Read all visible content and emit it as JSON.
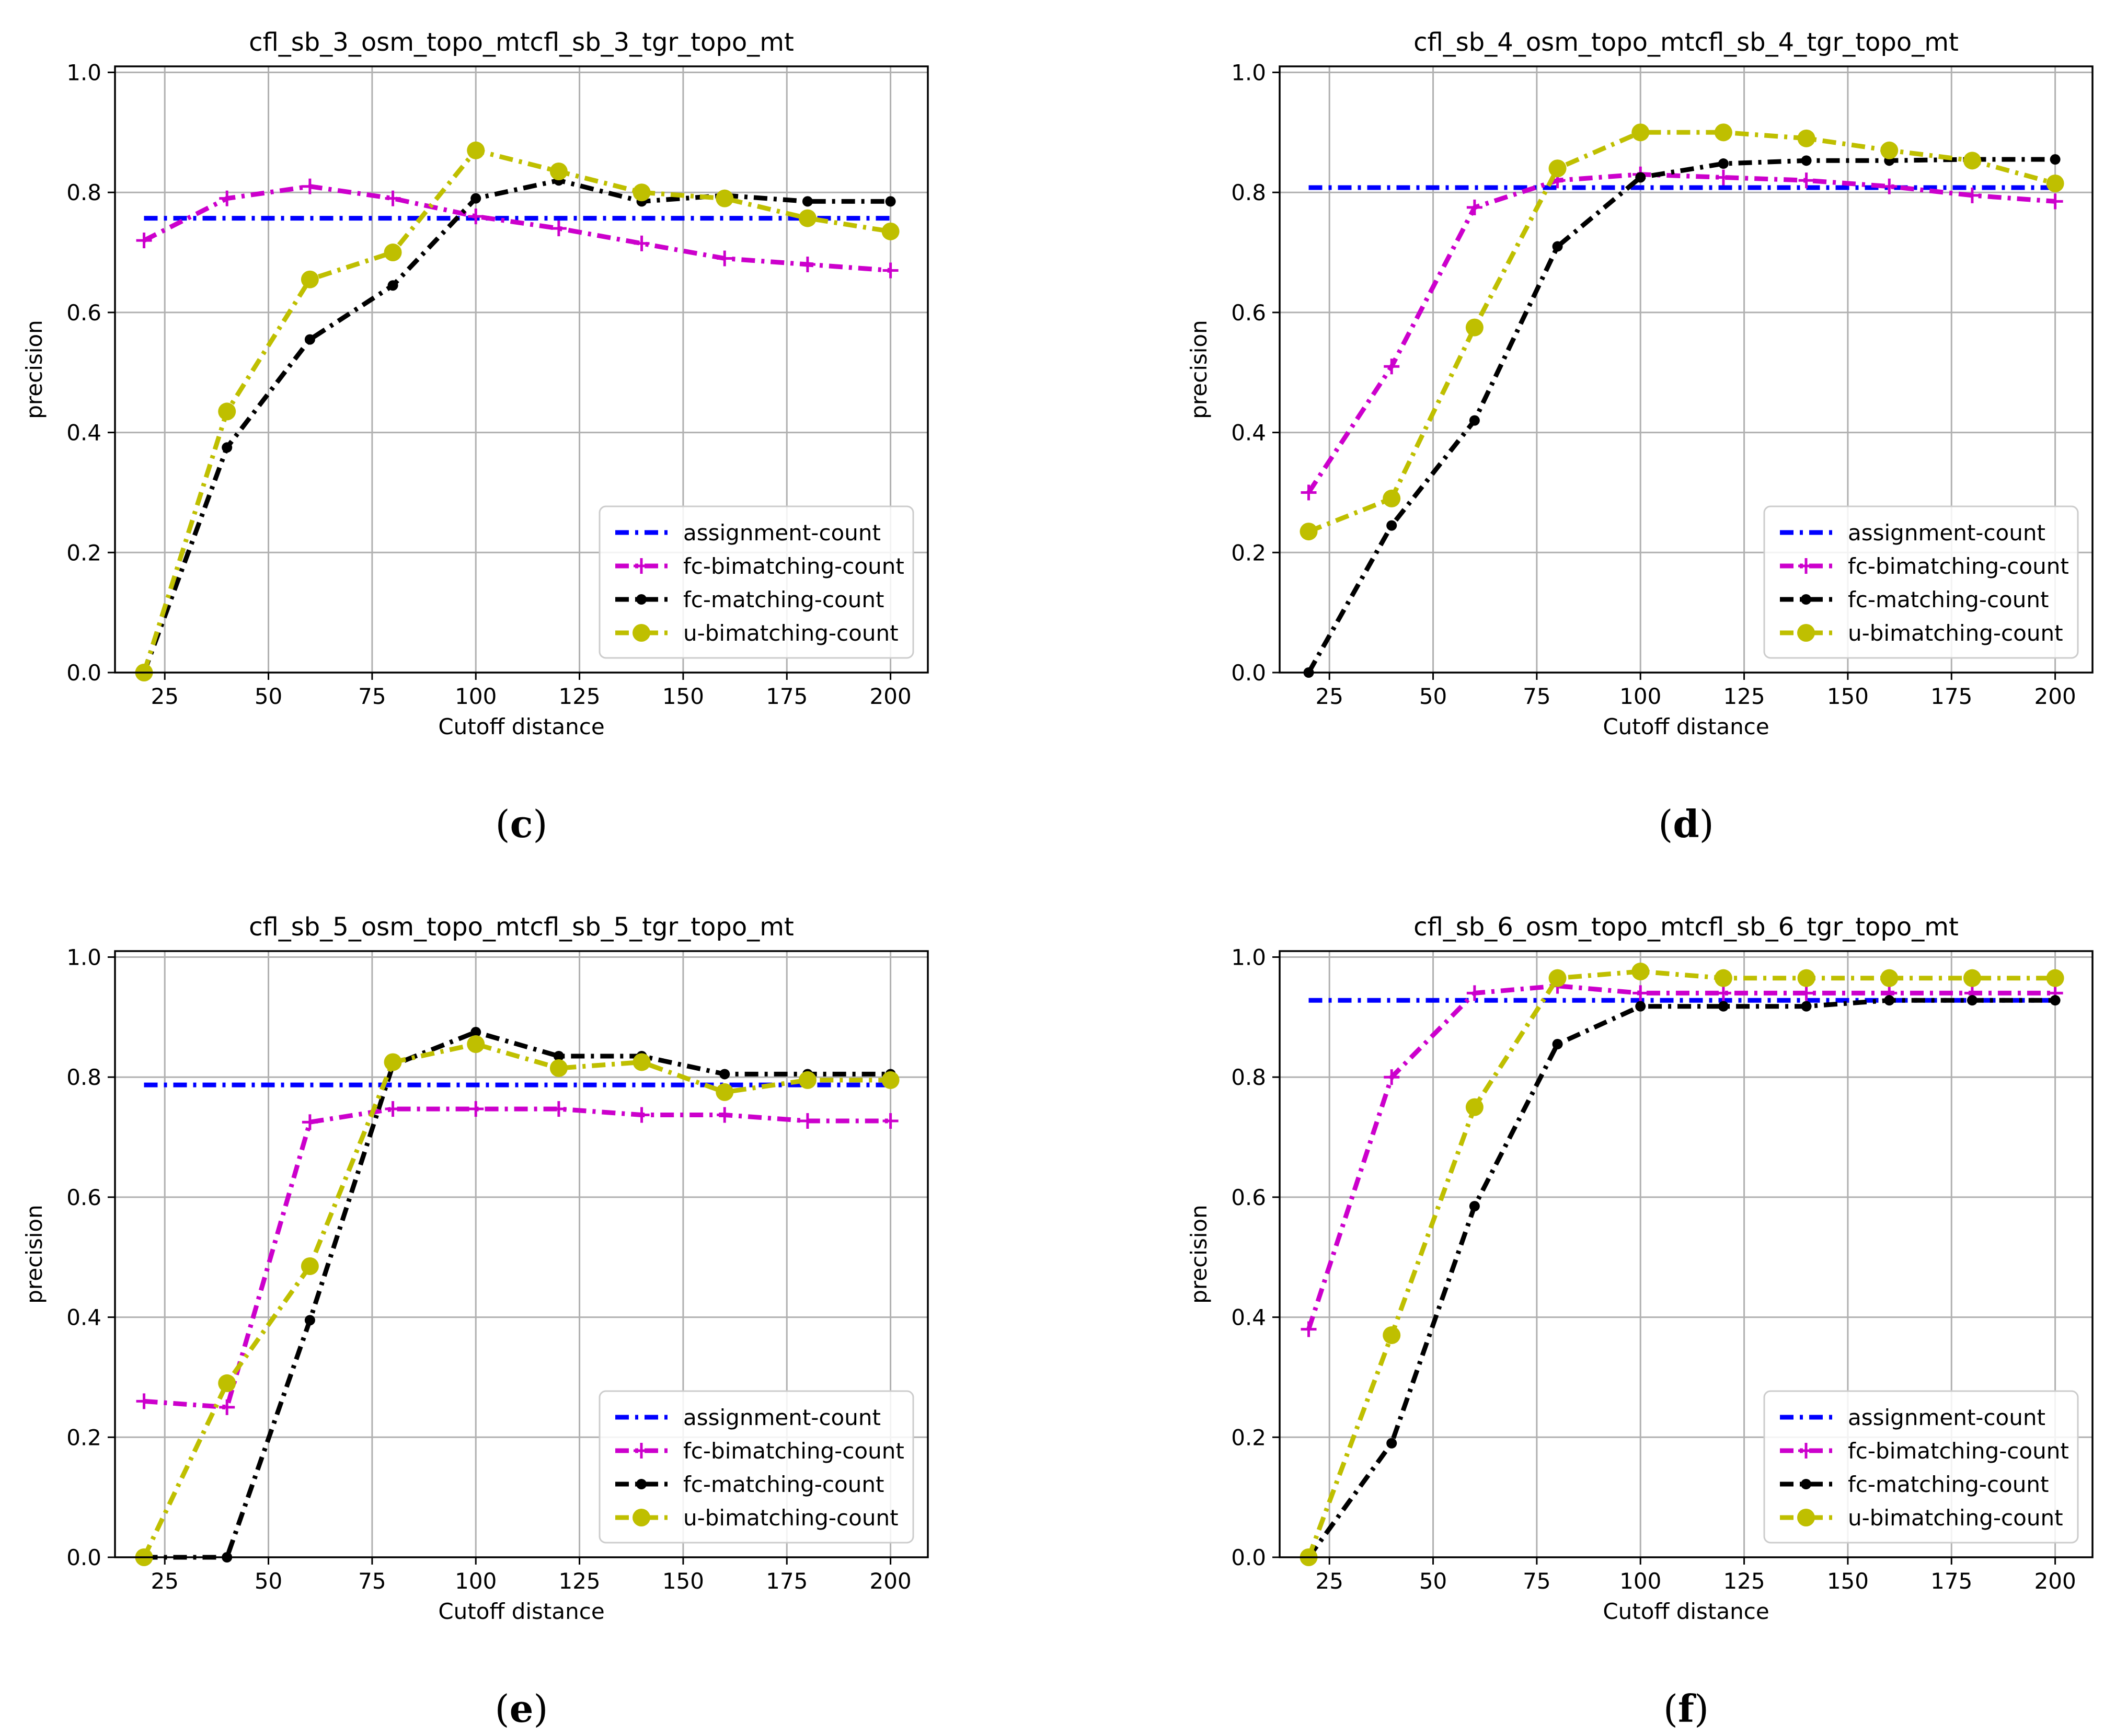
{
  "chart_data": [
    {
      "type": "line",
      "title": "cfl_sb_3_osm_topo_mtcfl_sb_3_tgr_topo_mt",
      "caption": "c",
      "xlabel": "Cutoff distance",
      "ylabel": "precision",
      "xlim": [
        13,
        209
      ],
      "ylim": [
        0,
        1.01
      ],
      "xticks": [
        25,
        50,
        75,
        100,
        125,
        150,
        175,
        200
      ],
      "yticks": [
        0.0,
        0.2,
        0.4,
        0.6,
        0.8,
        1.0
      ],
      "grid": true,
      "legend_position": "lower right",
      "x": [
        20,
        40,
        60,
        80,
        100,
        120,
        140,
        160,
        180,
        200
      ],
      "series": [
        {
          "name": "assignment-count",
          "values": [
            0.757,
            0.757,
            0.757,
            0.757,
            0.757,
            0.757,
            0.757,
            0.757,
            0.757,
            0.757
          ],
          "color": "#0000ff",
          "marker": "none"
        },
        {
          "name": "fc-bimatching-count",
          "values": [
            0.72,
            0.79,
            0.81,
            0.79,
            0.76,
            0.74,
            0.715,
            0.69,
            0.68,
            0.67
          ],
          "color": "#cc00cc",
          "marker": "plus"
        },
        {
          "name": "fc-matching-count",
          "values": [
            0.0,
            0.375,
            0.555,
            0.645,
            0.79,
            0.82,
            0.785,
            0.795,
            0.785,
            0.785
          ],
          "color": "#000000",
          "marker": "dot"
        },
        {
          "name": "u-bimatching-count",
          "values": [
            0.0,
            0.435,
            0.655,
            0.7,
            0.87,
            0.835,
            0.8,
            0.79,
            0.757,
            0.735
          ],
          "color": "#bfbf00",
          "marker": "circle"
        }
      ]
    },
    {
      "type": "line",
      "title": "cfl_sb_4_osm_topo_mtcfl_sb_4_tgr_topo_mt",
      "caption": "d",
      "xlabel": "Cutoff distance",
      "ylabel": "precision",
      "xlim": [
        13,
        209
      ],
      "ylim": [
        0,
        1.01
      ],
      "xticks": [
        25,
        50,
        75,
        100,
        125,
        150,
        175,
        200
      ],
      "yticks": [
        0.0,
        0.2,
        0.4,
        0.6,
        0.8,
        1.0
      ],
      "grid": true,
      "legend_position": "lower right",
      "x": [
        20,
        40,
        60,
        80,
        100,
        120,
        140,
        160,
        180,
        200
      ],
      "series": [
        {
          "name": "assignment-count",
          "values": [
            0.808,
            0.808,
            0.808,
            0.808,
            0.808,
            0.808,
            0.808,
            0.808,
            0.808,
            0.808
          ],
          "color": "#0000ff",
          "marker": "none"
        },
        {
          "name": "fc-bimatching-count",
          "values": [
            0.3,
            0.51,
            0.775,
            0.82,
            0.83,
            0.825,
            0.82,
            0.81,
            0.795,
            0.785
          ],
          "color": "#cc00cc",
          "marker": "plus"
        },
        {
          "name": "fc-matching-count",
          "values": [
            0.0,
            0.245,
            0.42,
            0.71,
            0.825,
            0.848,
            0.853,
            0.853,
            0.855,
            0.855
          ],
          "color": "#000000",
          "marker": "dot"
        },
        {
          "name": "u-bimatching-count",
          "values": [
            0.235,
            0.29,
            0.575,
            0.84,
            0.9,
            0.9,
            0.89,
            0.87,
            0.853,
            0.815
          ],
          "color": "#bfbf00",
          "marker": "circle"
        }
      ]
    },
    {
      "type": "line",
      "title": "cfl_sb_5_osm_topo_mtcfl_sb_5_tgr_topo_mt",
      "caption": "e",
      "xlabel": "Cutoff distance",
      "ylabel": "precision",
      "xlim": [
        13,
        209
      ],
      "ylim": [
        0,
        1.01
      ],
      "xticks": [
        25,
        50,
        75,
        100,
        125,
        150,
        175,
        200
      ],
      "yticks": [
        0.0,
        0.2,
        0.4,
        0.6,
        0.8,
        1.0
      ],
      "grid": true,
      "legend_position": "lower right",
      "x": [
        20,
        40,
        60,
        80,
        100,
        120,
        140,
        160,
        180,
        200
      ],
      "series": [
        {
          "name": "assignment-count",
          "values": [
            0.787,
            0.787,
            0.787,
            0.787,
            0.787,
            0.787,
            0.787,
            0.787,
            0.787,
            0.787
          ],
          "color": "#0000ff",
          "marker": "none"
        },
        {
          "name": "fc-bimatching-count",
          "values": [
            0.26,
            0.25,
            0.725,
            0.747,
            0.747,
            0.747,
            0.737,
            0.737,
            0.727,
            0.727
          ],
          "color": "#cc00cc",
          "marker": "plus"
        },
        {
          "name": "fc-matching-count",
          "values": [
            0.0,
            0.0,
            0.395,
            0.82,
            0.875,
            0.835,
            0.835,
            0.805,
            0.805,
            0.805
          ],
          "color": "#000000",
          "marker": "dot"
        },
        {
          "name": "u-bimatching-count",
          "values": [
            0.0,
            0.29,
            0.485,
            0.825,
            0.855,
            0.815,
            0.825,
            0.775,
            0.795,
            0.795
          ],
          "color": "#bfbf00",
          "marker": "circle"
        }
      ]
    },
    {
      "type": "line",
      "title": "cfl_sb_6_osm_topo_mtcfl_sb_6_tgr_topo_mt",
      "caption": "f",
      "xlabel": "Cutoff distance",
      "ylabel": "precision",
      "xlim": [
        13,
        209
      ],
      "ylim": [
        0,
        1.01
      ],
      "xticks": [
        25,
        50,
        75,
        100,
        125,
        150,
        175,
        200
      ],
      "yticks": [
        0.0,
        0.2,
        0.4,
        0.6,
        0.8,
        1.0
      ],
      "grid": true,
      "legend_position": "lower right",
      "x": [
        20,
        40,
        60,
        80,
        100,
        120,
        140,
        160,
        180,
        200
      ],
      "series": [
        {
          "name": "assignment-count",
          "values": [
            0.928,
            0.928,
            0.928,
            0.928,
            0.928,
            0.928,
            0.928,
            0.928,
            0.928,
            0.928
          ],
          "color": "#0000ff",
          "marker": "none"
        },
        {
          "name": "fc-bimatching-count",
          "values": [
            0.38,
            0.8,
            0.94,
            0.952,
            0.94,
            0.94,
            0.94,
            0.94,
            0.94,
            0.94
          ],
          "color": "#cc00cc",
          "marker": "plus"
        },
        {
          "name": "fc-matching-count",
          "values": [
            0.0,
            0.19,
            0.585,
            0.855,
            0.918,
            0.918,
            0.918,
            0.928,
            0.928,
            0.928
          ],
          "color": "#000000",
          "marker": "dot"
        },
        {
          "name": "u-bimatching-count",
          "values": [
            0.0,
            0.37,
            0.75,
            0.965,
            0.976,
            0.965,
            0.965,
            0.965,
            0.965,
            0.965
          ],
          "color": "#bfbf00",
          "marker": "circle"
        }
      ]
    }
  ]
}
